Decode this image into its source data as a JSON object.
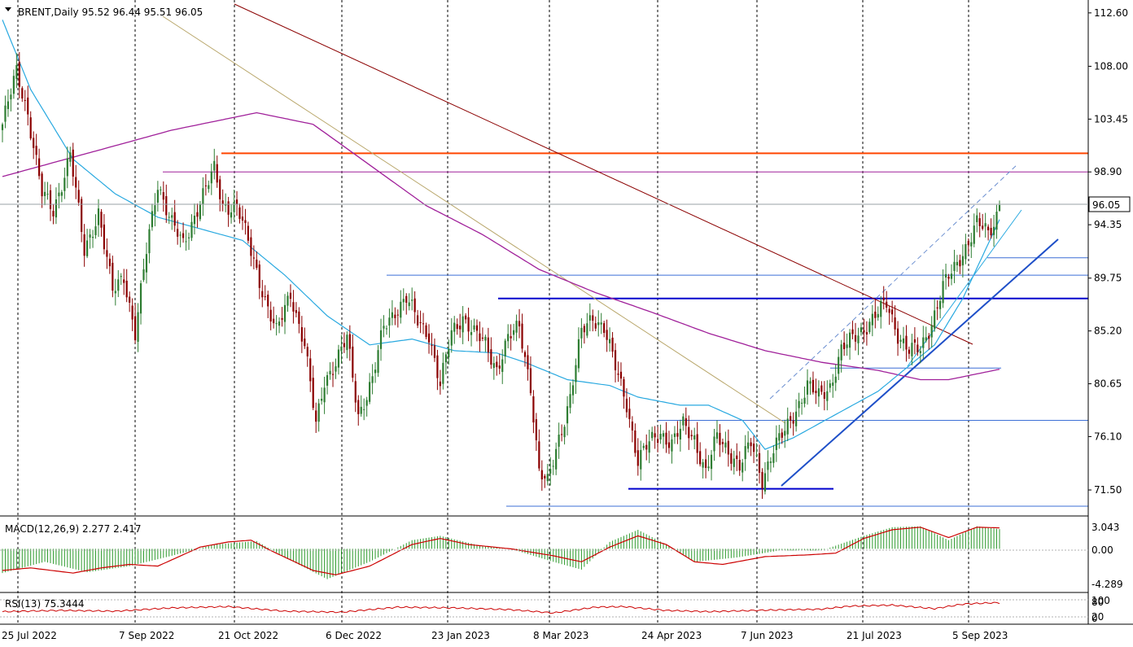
{
  "header": {
    "symbol_line": "BRENT,Daily  95.52 96.44 95.51 96.05"
  },
  "macd": {
    "label": "MACD(12,26,9) 2.277 2.417",
    "ticks": [
      "3.043",
      "0.00",
      "-4.289"
    ]
  },
  "rsi": {
    "label": "RSI(13) 75.3444",
    "ticks": [
      "100",
      "80",
      "20",
      "0"
    ]
  },
  "colors": {
    "bull": "#2e7d32",
    "bear": "#8b0000",
    "ma_fast": "#29a9e0",
    "ma_slow": "#a0209a",
    "resistance_orange": "#ff4500",
    "support_blue": "#0000cd",
    "trend_darkred": "#8b0000",
    "trend_olive": "#b8a66a",
    "macd_hist": "#2e9a2e",
    "macd_signal": "#cc0000",
    "rsi_line": "#cc0000",
    "current_price_box": "#ffffff"
  },
  "chart_data": {
    "type": "candlestick",
    "symbol": "BRENT",
    "timeframe": "Daily",
    "last_bar": {
      "open": 95.52,
      "high": 96.44,
      "low": 95.51,
      "close": 96.05
    },
    "current_price_label": "96.05",
    "y_ticks": [
      "112.60",
      "108.00",
      "103.45",
      "98.90",
      "94.35",
      "89.75",
      "85.20",
      "80.65",
      "76.10",
      "71.50"
    ],
    "x_ticks": [
      "25 Jul 2022",
      "7 Sep 2022",
      "21 Oct 2022",
      "6 Dec 2022",
      "23 Jan 2023",
      "8 Mar 2023",
      "24 Apr 2023",
      "7 Jun 2023",
      "21 Jul 2023",
      "5 Sep 2023"
    ],
    "ylim": [
      69.4,
      113.5
    ],
    "close_anchors": [
      [
        0,
        103.0
      ],
      [
        5,
        107.5
      ],
      [
        9,
        104.0
      ],
      [
        14,
        97.0
      ],
      [
        18,
        95.5
      ],
      [
        24,
        100.5
      ],
      [
        29,
        92.0
      ],
      [
        34,
        95.5
      ],
      [
        39,
        88.5
      ],
      [
        43,
        90.0
      ],
      [
        47,
        85.0
      ],
      [
        51,
        92.0
      ],
      [
        55,
        98.0
      ],
      [
        60,
        94.5
      ],
      [
        64,
        92.5
      ],
      [
        70,
        96.5
      ],
      [
        75,
        99.0
      ],
      [
        78,
        96.0
      ],
      [
        83,
        96.0
      ],
      [
        88,
        92.0
      ],
      [
        93,
        88.0
      ],
      [
        97,
        85.0
      ],
      [
        102,
        88.5
      ],
      [
        107,
        84.0
      ],
      [
        111,
        77.0
      ],
      [
        114,
        81.0
      ],
      [
        118,
        82.5
      ],
      [
        122,
        84.5
      ],
      [
        126,
        78.0
      ],
      [
        131,
        81.0
      ],
      [
        135,
        85.5
      ],
      [
        139,
        87.0
      ],
      [
        143,
        88.0
      ],
      [
        147,
        86.0
      ],
      [
        151,
        85.0
      ],
      [
        155,
        80.5
      ],
      [
        159,
        85.0
      ],
      [
        163,
        86.5
      ],
      [
        167,
        85.0
      ],
      [
        171,
        84.0
      ],
      [
        175,
        82.0
      ],
      [
        179,
        84.5
      ],
      [
        183,
        85.5
      ],
      [
        187,
        80.5
      ],
      [
        190,
        73.0
      ],
      [
        193,
        72.0
      ],
      [
        197,
        76.0
      ],
      [
        201,
        79.5
      ],
      [
        205,
        85.0
      ],
      [
        209,
        86.5
      ],
      [
        213,
        85.5
      ],
      [
        217,
        82.0
      ],
      [
        221,
        79.0
      ],
      [
        225,
        74.0
      ],
      [
        229,
        75.5
      ],
      [
        233,
        76.5
      ],
      [
        237,
        75.5
      ],
      [
        241,
        77.0
      ],
      [
        245,
        76.0
      ],
      [
        249,
        73.0
      ],
      [
        253,
        76.0
      ],
      [
        257,
        75.0
      ],
      [
        261,
        73.5
      ],
      [
        265,
        75.5
      ],
      [
        269,
        72.5
      ],
      [
        273,
        75.0
      ],
      [
        277,
        76.5
      ],
      [
        281,
        78.5
      ],
      [
        285,
        80.5
      ],
      [
        289,
        79.5
      ],
      [
        293,
        80.5
      ],
      [
        297,
        83.5
      ],
      [
        301,
        84.5
      ],
      [
        305,
        85.5
      ],
      [
        309,
        86.5
      ],
      [
        313,
        87.5
      ],
      [
        317,
        85.0
      ],
      [
        321,
        83.5
      ],
      [
        325,
        83.5
      ],
      [
        329,
        86.0
      ],
      [
        333,
        89.0
      ],
      [
        337,
        90.5
      ],
      [
        341,
        92.5
      ],
      [
        345,
        94.5
      ],
      [
        349,
        93.5
      ],
      [
        351,
        94.5
      ],
      [
        353,
        96.05
      ]
    ],
    "ma_fast_anchors": [
      [
        0,
        112.0
      ],
      [
        10,
        106.0
      ],
      [
        25,
        100.0
      ],
      [
        40,
        97.0
      ],
      [
        55,
        95.0
      ],
      [
        70,
        94.0
      ],
      [
        85,
        93.0
      ],
      [
        100,
        90.0
      ],
      [
        115,
        86.5
      ],
      [
        130,
        84.0
      ],
      [
        145,
        84.5
      ],
      [
        160,
        83.5
      ],
      [
        175,
        83.3
      ],
      [
        185,
        82.5
      ],
      [
        200,
        81.0
      ],
      [
        215,
        80.5
      ],
      [
        225,
        79.5
      ],
      [
        240,
        78.8
      ],
      [
        250,
        78.8
      ],
      [
        262,
        77.5
      ],
      [
        270,
        75.0
      ],
      [
        280,
        76.0
      ],
      [
        295,
        78.0
      ],
      [
        310,
        80.0
      ],
      [
        320,
        82.0
      ],
      [
        330,
        84.0
      ],
      [
        340,
        88.0
      ],
      [
        353,
        94.8
      ]
    ],
    "ma_slow_anchors": [
      [
        0,
        98.5
      ],
      [
        30,
        100.5
      ],
      [
        60,
        102.5
      ],
      [
        90,
        104.0
      ],
      [
        110,
        103.0
      ],
      [
        130,
        99.5
      ],
      [
        150,
        96.0
      ],
      [
        170,
        93.5
      ],
      [
        190,
        90.5
      ],
      [
        210,
        88.5
      ],
      [
        230,
        86.8
      ],
      [
        250,
        85.0
      ],
      [
        270,
        83.5
      ],
      [
        290,
        82.5
      ],
      [
        310,
        81.8
      ],
      [
        325,
        81.0
      ],
      [
        335,
        81.0
      ],
      [
        353,
        81.9
      ]
    ],
    "horizontal_levels": [
      {
        "price": 100.5,
        "color": "orange"
      },
      {
        "price": 98.9,
        "color": "magenta"
      },
      {
        "price": 90.0,
        "color": "blue-thin"
      },
      {
        "price": 88.0,
        "color": "blue"
      },
      {
        "price": 82.0,
        "color": "blue-thin"
      },
      {
        "price": 77.5,
        "color": "blue-thin"
      },
      {
        "price": 71.6,
        "color": "blue"
      },
      {
        "price": 70.1,
        "color": "blue-thin"
      },
      {
        "price": 91.5,
        "color": "blue-thin"
      }
    ],
    "macd_ylim": [
      -4.289,
      3.043
    ],
    "macd_signal_anchors": [
      [
        0,
        -2.5
      ],
      [
        10,
        -2.2
      ],
      [
        25,
        -2.8
      ],
      [
        35,
        -2.2
      ],
      [
        45,
        -1.8
      ],
      [
        55,
        -2.0
      ],
      [
        70,
        0.2
      ],
      [
        80,
        0.8
      ],
      [
        88,
        1.0
      ],
      [
        95,
        -0.2
      ],
      [
        110,
        -2.5
      ],
      [
        118,
        -3.0
      ],
      [
        130,
        -2.0
      ],
      [
        145,
        0.5
      ],
      [
        155,
        1.2
      ],
      [
        165,
        0.5
      ],
      [
        180,
        0.0
      ],
      [
        195,
        -0.8
      ],
      [
        205,
        -1.5
      ],
      [
        215,
        0.2
      ],
      [
        225,
        1.5
      ],
      [
        235,
        0.5
      ],
      [
        245,
        -1.5
      ],
      [
        255,
        -1.8
      ],
      [
        270,
        -0.9
      ],
      [
        285,
        -0.7
      ],
      [
        295,
        -0.5
      ],
      [
        305,
        1.2
      ],
      [
        315,
        2.2
      ],
      [
        325,
        2.5
      ],
      [
        335,
        1.3
      ],
      [
        345,
        2.5
      ],
      [
        353,
        2.417
      ]
    ],
    "macd_hist_anchors": [
      [
        0,
        -2.8
      ],
      [
        15,
        -1.5
      ],
      [
        30,
        -2.7
      ],
      [
        45,
        -2.0
      ],
      [
        60,
        -0.8
      ],
      [
        75,
        0.5
      ],
      [
        90,
        0.9
      ],
      [
        100,
        -1.0
      ],
      [
        115,
        -3.5
      ],
      [
        130,
        -1.5
      ],
      [
        145,
        1.0
      ],
      [
        155,
        1.5
      ],
      [
        170,
        0.3
      ],
      [
        180,
        0.0
      ],
      [
        195,
        -1.5
      ],
      [
        205,
        -2.4
      ],
      [
        215,
        0.8
      ],
      [
        225,
        2.2
      ],
      [
        235,
        0.5
      ],
      [
        245,
        -1.5
      ],
      [
        260,
        -1.0
      ],
      [
        275,
        -0.2
      ],
      [
        290,
        -0.2
      ],
      [
        305,
        1.5
      ],
      [
        315,
        2.5
      ],
      [
        325,
        2.6
      ],
      [
        335,
        1.0
      ],
      [
        345,
        2.6
      ],
      [
        353,
        2.277
      ]
    ],
    "rsi_ylim": [
      0,
      100
    ],
    "rsi_anchors": [
      [
        0,
        40
      ],
      [
        20,
        45
      ],
      [
        40,
        42
      ],
      [
        60,
        55
      ],
      [
        80,
        60
      ],
      [
        100,
        42
      ],
      [
        120,
        38
      ],
      [
        140,
        58
      ],
      [
        160,
        55
      ],
      [
        180,
        48
      ],
      [
        195,
        35
      ],
      [
        210,
        58
      ],
      [
        220,
        60
      ],
      [
        235,
        45
      ],
      [
        250,
        40
      ],
      [
        270,
        46
      ],
      [
        290,
        50
      ],
      [
        300,
        62
      ],
      [
        315,
        66
      ],
      [
        330,
        52
      ],
      [
        340,
        70
      ],
      [
        350,
        75
      ],
      [
        353,
        75.34
      ]
    ]
  }
}
